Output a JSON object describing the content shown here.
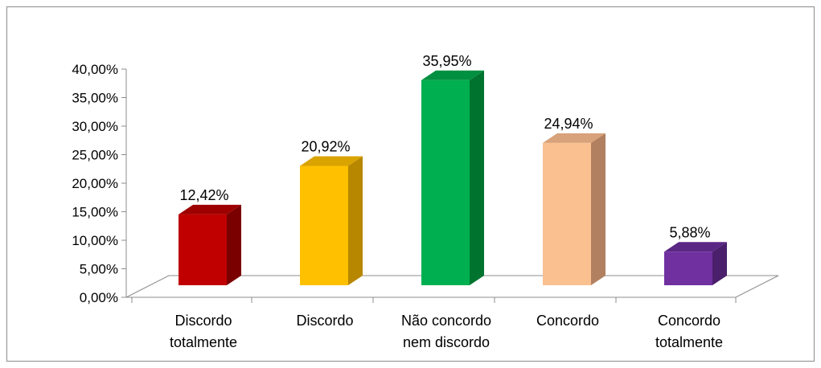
{
  "chart_data": {
    "type": "bar",
    "style": "3d-column",
    "categories": [
      [
        "Discordo",
        "totalmente"
      ],
      [
        "Discordo"
      ],
      [
        "Não concordo",
        "nem discordo"
      ],
      [
        "Concordo"
      ],
      [
        "Concordo",
        "totalmente"
      ]
    ],
    "values": [
      12.42,
      20.92,
      35.95,
      24.94,
      5.88
    ],
    "data_labels": [
      "12,42%",
      "20,92%",
      "35,95%",
      "24,94%",
      "5,88%"
    ],
    "y_ticks": [
      "0,00%",
      "5,00%",
      "10,00%",
      "15,00%",
      "20,00%",
      "25,00%",
      "30,00%",
      "35,00%",
      "40,00%"
    ],
    "ylim": [
      0,
      40
    ],
    "grid": false,
    "legend": "none",
    "colors": [
      {
        "front": "#c00000",
        "side": "#7a0000",
        "top": "#9e0000"
      },
      {
        "front": "#ffc000",
        "side": "#b88700",
        "top": "#d9a300"
      },
      {
        "front": "#00b050",
        "side": "#00742f",
        "top": "#009040"
      },
      {
        "front": "#fac090",
        "side": "#b08060",
        "top": "#d8a27a"
      },
      {
        "front": "#7030a0",
        "side": "#4a1f6c",
        "top": "#5a2785"
      }
    ]
  }
}
